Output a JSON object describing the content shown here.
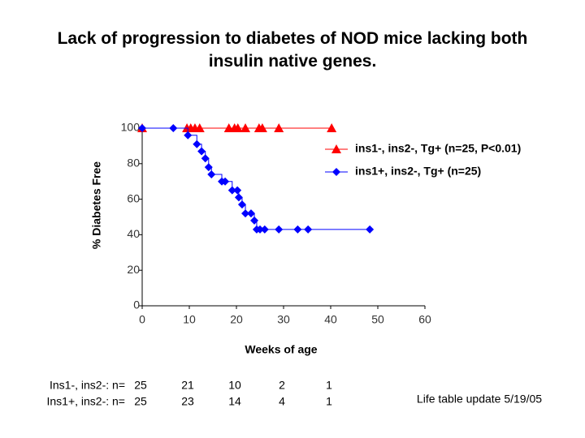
{
  "chart_data": {
    "type": "step",
    "title": "Lack of progression to diabetes of NOD mice lacking both insulin native genes.",
    "x_label": "Weeks of age",
    "y_label": "% Diabetes Free",
    "xlim": [
      0,
      60
    ],
    "xticks": [
      0,
      10,
      20,
      30,
      40,
      50,
      60
    ],
    "ylim": [
      0,
      100
    ],
    "yticks": [
      0,
      20,
      40,
      60,
      80,
      100
    ],
    "legend": "upper right",
    "series": [
      {
        "name": "ins1-, ins2-, Tg+ (n=25, P<0.01)",
        "color": "#ff0000",
        "marker": "triangle",
        "x": [
          0,
          9.5,
          10.3,
          11.2,
          12.2,
          18.4,
          19.6,
          20.3,
          21.9,
          24.8,
          25.5,
          29,
          40.2
        ],
        "values": [
          100,
          100,
          100,
          100,
          100,
          100,
          100,
          100,
          100,
          100,
          100,
          100,
          100
        ]
      },
      {
        "name": "ins1+, ins2-, Tg+ (n=25)",
        "color": "#0000ff",
        "marker": "diamond",
        "x": [
          0,
          6.6,
          9.7,
          11.6,
          12.6,
          13.4,
          14.1,
          14.7,
          16.9,
          17.6,
          19.1,
          20.2,
          20.5,
          21.2,
          21.9,
          23.1,
          23.8,
          24.3,
          25,
          26,
          29,
          33,
          35.2,
          48.3
        ],
        "values": [
          100,
          100,
          96,
          91,
          87,
          83,
          78,
          74,
          70,
          70,
          65,
          65,
          61,
          57,
          52,
          52,
          48,
          43,
          43,
          43,
          43,
          43,
          43,
          43
        ]
      }
    ],
    "at_risk": [
      {
        "label": "Ins1-, ins2-: n=",
        "values": [
          25,
          21,
          10,
          2,
          1
        ]
      },
      {
        "label": "Ins1+, ins2-: n=",
        "values": [
          25,
          23,
          14,
          4,
          1
        ]
      }
    ],
    "note": "Life table update 5/19/05"
  }
}
